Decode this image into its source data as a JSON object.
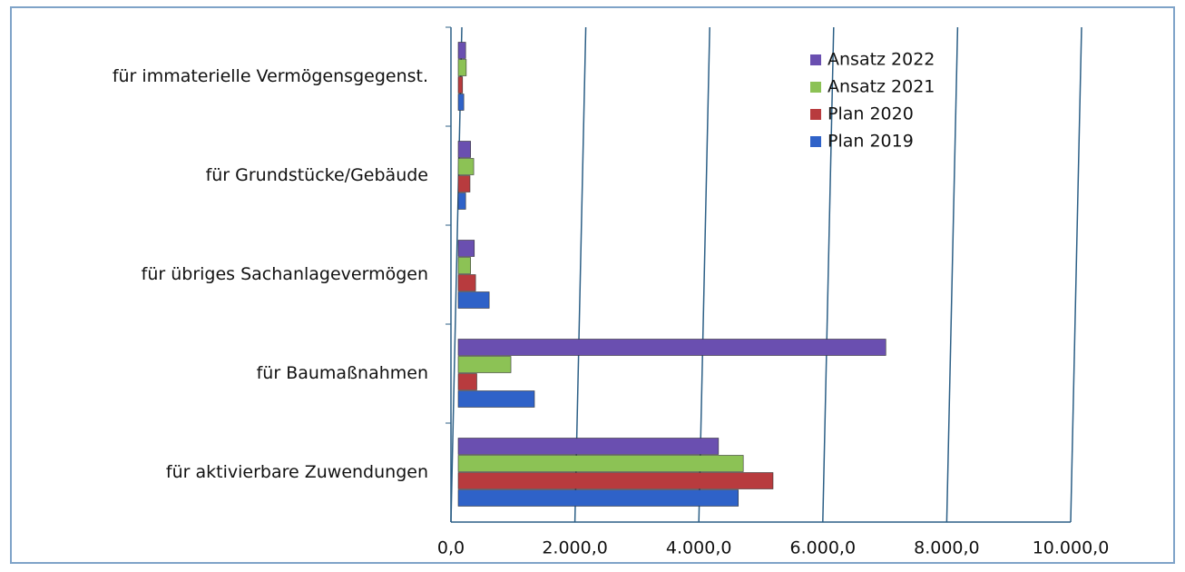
{
  "chart_data": {
    "type": "bar",
    "orientation": "horizontal",
    "categories": [
      "für immaterielle Vermögensgegenst.",
      "für Grundstücke/Gebäude",
      "für übriges Sachanlagevermögen",
      "für Baumaßnahmen",
      "für aktivierbare Zuwendungen"
    ],
    "series": [
      {
        "name": "Ansatz 2022",
        "color": "#6a4fb0",
        "values": [
          120,
          200,
          260,
          6900,
          4200
        ]
      },
      {
        "name": "Ansatz 2021",
        "color": "#8cc255",
        "values": [
          130,
          250,
          200,
          850,
          4600
        ]
      },
      {
        "name": "Plan 2020",
        "color": "#b83b3e",
        "values": [
          70,
          190,
          280,
          300,
          5080
        ]
      },
      {
        "name": "Plan 2019",
        "color": "#2f62c8",
        "values": [
          90,
          120,
          500,
          1230,
          4520
        ]
      }
    ],
    "xlim": [
      0,
      10000
    ],
    "xticks": [
      {
        "value": 0,
        "label": "0,0"
      },
      {
        "value": 2000,
        "label": "2.000,0"
      },
      {
        "value": 4000,
        "label": "4.000,0"
      },
      {
        "value": 6000,
        "label": "6.000,0"
      },
      {
        "value": 8000,
        "label": "8.000,0"
      },
      {
        "value": 10000,
        "label": "10.000,0"
      }
    ],
    "grid": true,
    "legend": "top-right"
  }
}
